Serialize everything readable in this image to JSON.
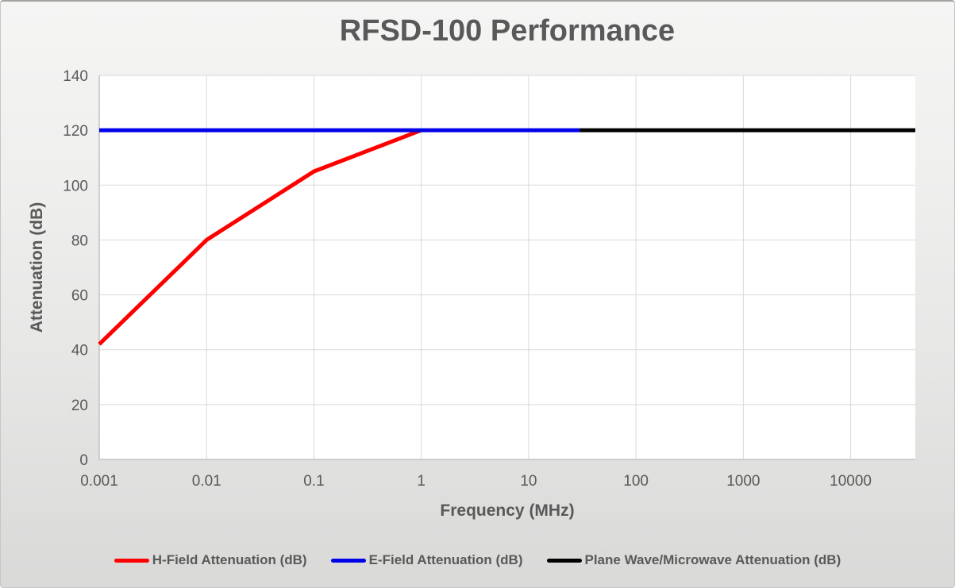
{
  "chart_data": {
    "type": "line",
    "title": "RFSD-100 Performance",
    "xlabel": "Frequency (MHz)",
    "ylabel": "Attenuation (dB)",
    "x_scale": "log",
    "xlim": [
      0.001,
      40000
    ],
    "ylim": [
      0,
      140
    ],
    "x_ticks": [
      "0.001",
      "0.01",
      "0.1",
      "1",
      "10",
      "100",
      "1000",
      "10000"
    ],
    "y_ticks": [
      0,
      20,
      40,
      60,
      80,
      100,
      120,
      140
    ],
    "grid": true,
    "legend_position": "bottom",
    "series": [
      {
        "name": "H-Field Attenuation (dB)",
        "color": "#fe0000",
        "points": [
          [
            0.001,
            42
          ],
          [
            0.01,
            80
          ],
          [
            0.1,
            105
          ],
          [
            1,
            120
          ]
        ]
      },
      {
        "name": "E-Field Attenuation (dB)",
        "color": "#0202e8",
        "points": [
          [
            0.001,
            120
          ],
          [
            30,
            120
          ]
        ]
      },
      {
        "name": "Plane Wave/Microwave Attenuation (dB)",
        "color": "#000000",
        "points": [
          [
            30,
            120
          ],
          [
            40000,
            120
          ]
        ]
      }
    ]
  },
  "theme": {
    "text_color": "#595959",
    "gridline_color": "#d9d9d9",
    "axis_line_color": "#c2c2c2",
    "plot_background": "#ffffff"
  }
}
